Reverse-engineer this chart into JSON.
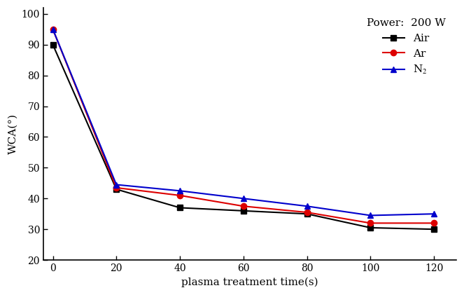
{
  "x": [
    0,
    20,
    40,
    60,
    80,
    100,
    120
  ],
  "air": [
    90,
    43,
    37,
    36,
    35,
    30.5,
    30
  ],
  "ar": [
    95,
    43.5,
    41,
    37.5,
    35.5,
    32,
    32
  ],
  "n2": [
    95,
    44.5,
    42.5,
    40,
    37.5,
    34.5,
    35
  ],
  "air_color": "#000000",
  "ar_color": "#dd0000",
  "n2_color": "#0000cc",
  "xlabel": "plasma treatment time(s)",
  "ylabel": "WCA(°)",
  "legend_title": "Power:  200 W",
  "legend_air": "Air",
  "legend_ar": "Ar",
  "legend_n2": "N$_2$",
  "xlim": [
    -3,
    127
  ],
  "ylim": [
    20,
    102
  ],
  "yticks": [
    20,
    30,
    40,
    50,
    60,
    70,
    80,
    90,
    100
  ],
  "xticks": [
    0,
    20,
    40,
    60,
    80,
    100,
    120
  ],
  "linewidth": 1.5,
  "markersize": 6,
  "bg_color": "#ffffff"
}
